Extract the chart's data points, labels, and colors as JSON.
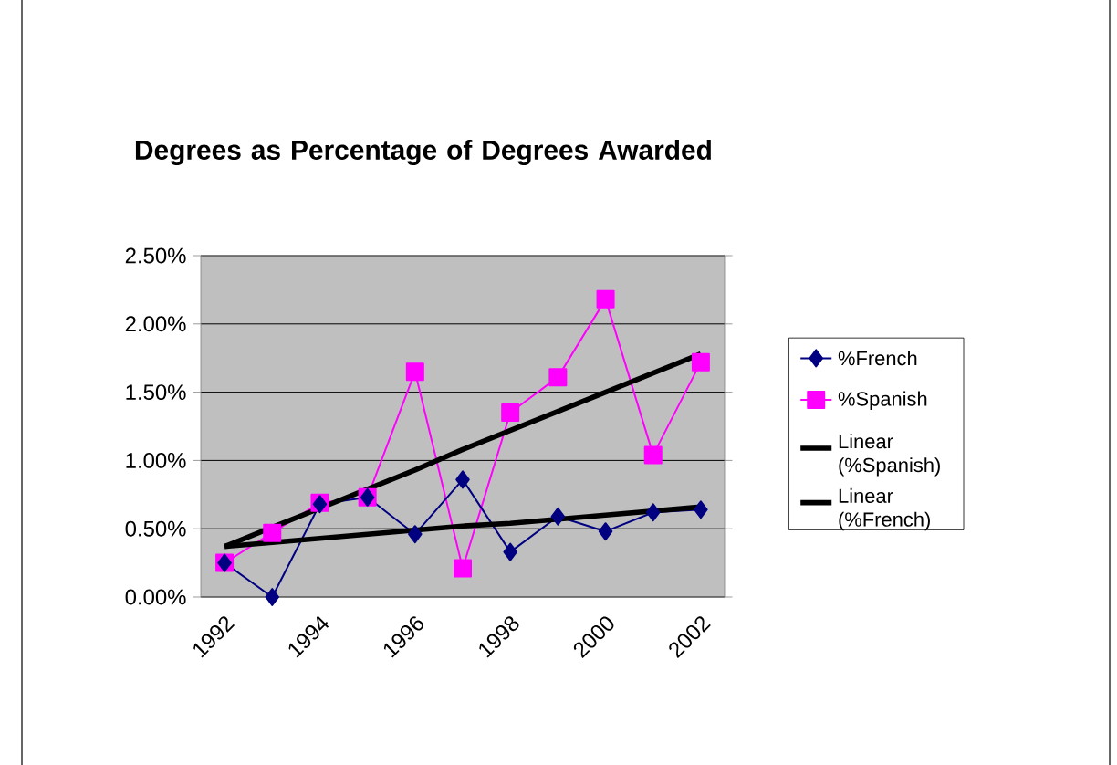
{
  "chart_data": {
    "type": "line",
    "title": "Degrees as Percentage of Degrees Awarded",
    "categories": [
      "1992",
      null,
      "1994",
      null,
      "1996",
      null,
      "1998",
      null,
      "2000",
      null,
      "2002"
    ],
    "series": [
      {
        "name": "%French",
        "color": "#000080",
        "marker": "diamond",
        "values": [
          0.25,
          0,
          0.68,
          0.73,
          0.46,
          0.86,
          0.33,
          0.59,
          0.48,
          0.62,
          0.64
        ]
      },
      {
        "name": "%Spanish",
        "color": "#ff00ff",
        "marker": "square",
        "values": [
          0.25,
          0.47,
          0.69,
          0.73,
          1.65,
          0.21,
          1.35,
          1.61,
          2.18,
          1.04,
          1.72
        ]
      },
      {
        "name": "Linear (%Spanish)",
        "color": "#000000",
        "marker": "none",
        "values": [
          0.37,
          0.51,
          0.65,
          0.79,
          0.93,
          1.08,
          1.22,
          1.36,
          1.5,
          1.64,
          1.78
        ]
      },
      {
        "name": "Linear (%French)",
        "color": "#000000",
        "marker": "none",
        "values": [
          0.37,
          0.4,
          0.43,
          0.46,
          0.49,
          0.52,
          0.54,
          0.57,
          0.6,
          0.63,
          0.66
        ]
      }
    ],
    "ylim": [
      0,
      2.5
    ],
    "yticks": [
      {
        "value": 0,
        "label": "0.00%"
      },
      {
        "value": 0.5,
        "label": "0.50%"
      },
      {
        "value": 1,
        "label": "1.00%"
      },
      {
        "value": 1.5,
        "label": "1.50%"
      },
      {
        "value": 2,
        "label": "2.00%"
      },
      {
        "value": 2.5,
        "label": "2.50%"
      }
    ],
    "grid": "y",
    "legend": "right"
  }
}
